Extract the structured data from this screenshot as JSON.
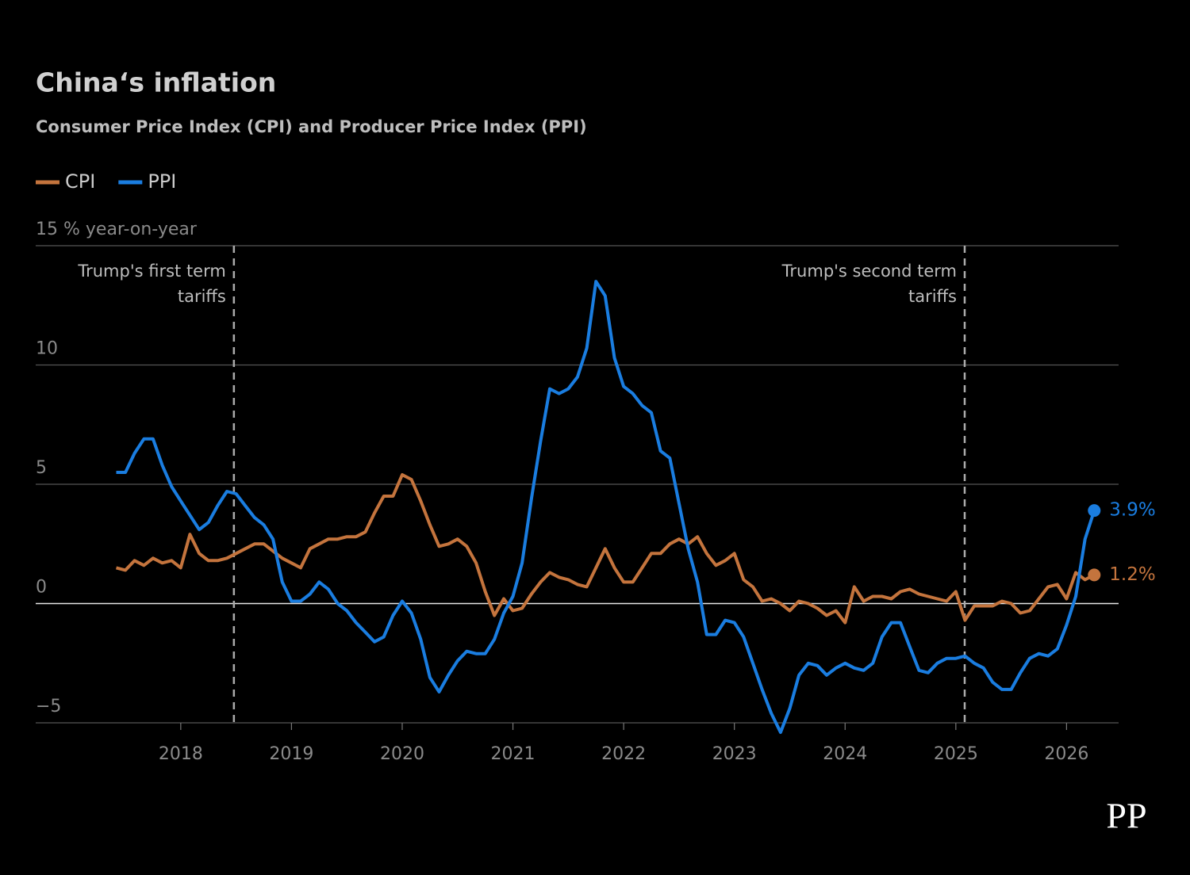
{
  "chart_data": {
    "type": "line",
    "title": "China‘s inflation",
    "subtitle": "Consumer Price Index (CPI) and Producer Price Index (PPI)",
    "logo": "PP",
    "x": [
      2017.417,
      2017.5,
      2017.583,
      2017.667,
      2017.75,
      2017.833,
      2017.917,
      2018,
      2018.083,
      2018.167,
      2018.25,
      2018.333,
      2018.417,
      2018.5,
      2018.583,
      2018.667,
      2018.75,
      2018.833,
      2018.917,
      2019,
      2019.083,
      2019.167,
      2019.25,
      2019.333,
      2019.417,
      2019.5,
      2019.583,
      2019.667,
      2019.75,
      2019.833,
      2019.917,
      2020,
      2020.083,
      2020.167,
      2020.25,
      2020.333,
      2020.417,
      2020.5,
      2020.583,
      2020.667,
      2020.75,
      2020.833,
      2020.917,
      2021,
      2021.083,
      2021.167,
      2021.25,
      2021.333,
      2021.417,
      2021.5,
      2021.583,
      2021.667,
      2021.75,
      2021.833,
      2021.917,
      2022,
      2022.083,
      2022.167,
      2022.25,
      2022.333,
      2022.417,
      2022.5,
      2022.583,
      2022.667,
      2022.75,
      2022.833,
      2022.917,
      2023,
      2023.083,
      2023.167,
      2023.25,
      2023.333,
      2023.417,
      2023.5,
      2023.583,
      2023.667,
      2023.75,
      2023.833,
      2023.917,
      2024,
      2024.083,
      2024.167,
      2024.25,
      2024.333,
      2024.417,
      2024.5,
      2024.583,
      2024.667,
      2024.75,
      2024.833,
      2024.917,
      2025,
      2025.083,
      2025.167,
      2025.25,
      2025.333,
      2025.417,
      2025.5,
      2025.583,
      2025.667,
      2025.75,
      2025.833,
      2025.917,
      2026,
      2026.083,
      2026.167,
      2026.25
    ],
    "series": [
      {
        "name": "CPI",
        "color": "#c4743d",
        "values": [
          1.5,
          1.4,
          1.8,
          1.6,
          1.9,
          1.7,
          1.8,
          1.5,
          2.9,
          2.1,
          1.8,
          1.8,
          1.9,
          2.1,
          2.3,
          2.5,
          2.5,
          2.2,
          1.9,
          1.7,
          1.5,
          2.3,
          2.5,
          2.7,
          2.7,
          2.8,
          2.8,
          3.0,
          3.8,
          4.5,
          4.5,
          5.4,
          5.2,
          4.3,
          3.3,
          2.4,
          2.5,
          2.7,
          2.4,
          1.7,
          0.5,
          -0.5,
          0.2,
          -0.3,
          -0.2,
          0.4,
          0.9,
          1.3,
          1.1,
          1.0,
          0.8,
          0.7,
          1.5,
          2.3,
          1.5,
          0.9,
          0.9,
          1.5,
          2.1,
          2.1,
          2.5,
          2.7,
          2.5,
          2.8,
          2.1,
          1.6,
          1.8,
          2.1,
          1.0,
          0.7,
          0.1,
          0.2,
          0.0,
          -0.3,
          0.1,
          0.0,
          -0.2,
          -0.5,
          -0.3,
          -0.8,
          0.7,
          0.1,
          0.3,
          0.3,
          0.2,
          0.5,
          0.6,
          0.4,
          0.3,
          0.2,
          0.1,
          0.5,
          -0.7,
          -0.1,
          -0.1,
          -0.1,
          0.1,
          0.0,
          -0.4,
          -0.3,
          0.2,
          0.7,
          0.8,
          0.2,
          1.3,
          1.0,
          1.2
        ],
        "value_labels": [
          null,
          null,
          null,
          null,
          null,
          null,
          null,
          null,
          null,
          null,
          null,
          null,
          null,
          null,
          null,
          null,
          null,
          null,
          null,
          null,
          null,
          null,
          null,
          null,
          null,
          null,
          null,
          null,
          null,
          null,
          null,
          null,
          null,
          null,
          null,
          null,
          null,
          null,
          null,
          null,
          null,
          null,
          null,
          null,
          null,
          null,
          null,
          null,
          null,
          null,
          null,
          null,
          null,
          null,
          null,
          null,
          null,
          null,
          null,
          null,
          null,
          null,
          null,
          null,
          null,
          null,
          null,
          null,
          null,
          null,
          null,
          null,
          null,
          null,
          null,
          null,
          null,
          null,
          null,
          null,
          null,
          null,
          null,
          null,
          null,
          null,
          null,
          null,
          null,
          null,
          null,
          null,
          null,
          null,
          null,
          null,
          null,
          null,
          null,
          null,
          null,
          null,
          null,
          null,
          null,
          null,
          "1.2%"
        ]
      },
      {
        "name": "PPI",
        "color": "#1a7de0",
        "values": [
          5.5,
          5.5,
          6.3,
          6.9,
          6.9,
          5.8,
          4.9,
          4.3,
          3.7,
          3.1,
          3.4,
          4.1,
          4.7,
          4.6,
          4.1,
          3.6,
          3.3,
          2.7,
          0.9,
          0.1,
          0.1,
          0.4,
          0.9,
          0.6,
          0.0,
          -0.3,
          -0.8,
          -1.2,
          -1.6,
          -1.4,
          -0.5,
          0.1,
          -0.4,
          -1.5,
          -3.1,
          -3.7,
          -3.0,
          -2.4,
          -2.0,
          -2.1,
          -2.1,
          -1.5,
          -0.4,
          0.3,
          1.7,
          4.4,
          6.8,
          9.0,
          8.8,
          9.0,
          9.5,
          10.7,
          13.5,
          12.9,
          10.3,
          9.1,
          8.8,
          8.3,
          8.0,
          6.4,
          6.1,
          4.2,
          2.3,
          0.9,
          -1.3,
          -1.3,
          -0.7,
          -0.8,
          -1.4,
          -2.5,
          -3.6,
          -4.6,
          -5.4,
          -4.4,
          -3.0,
          -2.5,
          -2.6,
          -3.0,
          -2.7,
          -2.5,
          -2.7,
          -2.8,
          -2.5,
          -1.4,
          -0.8,
          -0.8,
          -1.8,
          -2.8,
          -2.9,
          -2.5,
          -2.3,
          -2.3,
          -2.2,
          -2.5,
          -2.7,
          -3.3,
          -3.6,
          -3.6,
          -2.9,
          -2.3,
          -2.1,
          -2.2,
          -1.9,
          -0.9,
          0.3,
          2.7,
          3.9
        ],
        "value_labels": [
          null,
          null,
          null,
          null,
          null,
          null,
          null,
          null,
          null,
          null,
          null,
          null,
          null,
          null,
          null,
          null,
          null,
          null,
          null,
          null,
          null,
          null,
          null,
          null,
          null,
          null,
          null,
          null,
          null,
          null,
          null,
          null,
          null,
          null,
          null,
          null,
          null,
          null,
          null,
          null,
          null,
          null,
          null,
          null,
          null,
          null,
          null,
          null,
          null,
          null,
          null,
          null,
          null,
          null,
          null,
          null,
          null,
          null,
          null,
          null,
          null,
          null,
          null,
          null,
          null,
          null,
          null,
          null,
          null,
          null,
          null,
          null,
          null,
          null,
          null,
          null,
          null,
          null,
          null,
          null,
          null,
          null,
          null,
          null,
          null,
          null,
          null,
          null,
          null,
          null,
          null,
          null,
          null,
          null,
          null,
          null,
          null,
          null,
          null,
          null,
          null,
          null,
          null,
          null,
          null,
          null,
          "3.9%"
        ]
      }
    ],
    "xlim": [
      2016.69,
      2026.47
    ],
    "xticks": [
      2018,
      2019,
      2020,
      2021,
      2022,
      2023,
      2024,
      2025,
      2026
    ],
    "ylim": [
      -5,
      15
    ],
    "yticks": [
      {
        "value": -5,
        "label": "−5"
      },
      0,
      5,
      10,
      {
        "value": 15,
        "label": "15 % year-on-year"
      }
    ],
    "grid": true,
    "annotations": [
      {
        "x": 2018.48,
        "lines": [
          "Trump's first term",
          "tariffs"
        ]
      },
      {
        "x": 2025.08,
        "lines": [
          "Trump's second term",
          "tariffs"
        ]
      }
    ]
  }
}
